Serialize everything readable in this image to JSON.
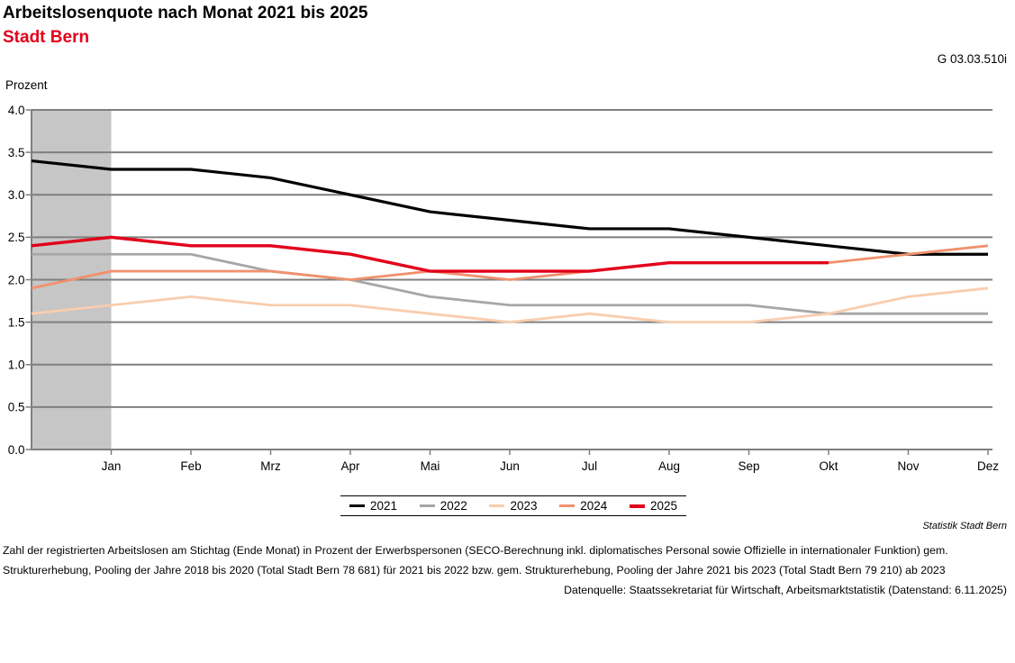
{
  "header": {
    "title": "Arbeitslosenquote nach Monat 2021 bis 2025",
    "subtitle": "Stadt Bern",
    "figure_id": "G 03.03.510i"
  },
  "chart_data": {
    "type": "line",
    "title": "Arbeitslosenquote nach Monat 2021 bis 2025",
    "subtitle": "Stadt Bern",
    "ylabel": "Prozent",
    "ylim": [
      0.0,
      4.0
    ],
    "ytick_step": 0.5,
    "grid": "horizontal",
    "legend_position": "bottom-center",
    "x_tick_labels": [
      "Jan",
      "Feb",
      "Mrz",
      "Apr",
      "Mai",
      "Jun",
      "Jul",
      "Aug",
      "Sep",
      "Okt",
      "Nov",
      "Dez"
    ],
    "x_note": "Each line starts at the y-axis with the December value of the previous year, one step before Jan; this lead segment lies inside the gray highlight band.",
    "highlight_band": {
      "range": "axis-to-Jan",
      "color": "#c6c6c6"
    },
    "series": [
      {
        "name": "2021",
        "color": "#000000",
        "values": [
          3.4,
          3.3,
          3.3,
          3.2,
          3.0,
          2.8,
          2.7,
          2.6,
          2.6,
          2.5,
          2.4,
          2.3,
          2.3
        ]
      },
      {
        "name": "2022",
        "color": "#a6a6a6",
        "values": [
          2.3,
          2.3,
          2.3,
          2.1,
          2.0,
          1.8,
          1.7,
          1.7,
          1.7,
          1.7,
          1.6,
          1.6,
          1.6
        ]
      },
      {
        "name": "2023",
        "color": "#f8cdae",
        "values": [
          1.6,
          1.7,
          1.8,
          1.7,
          1.7,
          1.6,
          1.5,
          1.6,
          1.5,
          1.5,
          1.6,
          1.8,
          1.9
        ]
      },
      {
        "name": "2024",
        "color": "#f0916e",
        "values": [
          1.9,
          2.1,
          2.1,
          2.1,
          2.0,
          2.1,
          2.0,
          2.1,
          2.2,
          2.2,
          2.2,
          2.3,
          2.4
        ]
      },
      {
        "name": "2025",
        "color": "#e2001a",
        "values": [
          2.4,
          2.5,
          2.4,
          2.4,
          2.3,
          2.1,
          2.1,
          2.1,
          2.2,
          2.2,
          2.2,
          null,
          null
        ]
      }
    ]
  },
  "footer": {
    "attribution": "Statistik Stadt Bern",
    "footnote_lines": [
      "Zahl der registrierten Arbeitslosen am Stichtag (Ende Monat) in Prozent der Erwerbspersonen (SECO-Berechnung inkl. diplomatisches Personal sowie Offizielle in internationaler Funktion) gem.",
      "Strukturerhebung, Pooling der Jahre 2018 bis 2020 (Total Stadt Bern 78 681) für 2021 bis 2022 bzw. gem. Strukturerhebung, Pooling der Jahre 2021 bis 2023 (Total Stadt Bern 79 210) ab 2023"
    ],
    "source": "Datenquelle: Staatssekretariat für Wirtschaft, Arbeitsmarktstatistik (Datenstand: 6.11.2025)"
  }
}
